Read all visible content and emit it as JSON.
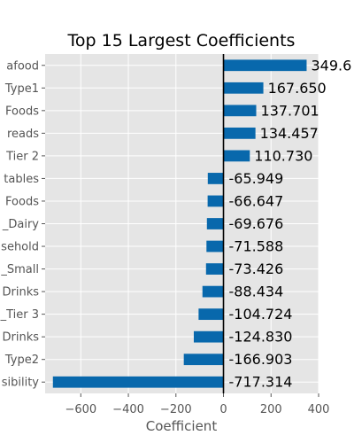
{
  "chart_data": {
    "type": "bar",
    "orientation": "horizontal",
    "title": "Top 15 Largest Coefficients",
    "xlabel": "Coefficient",
    "ylabel": "",
    "xlim": [
      -750,
      400
    ],
    "xticks": [
      -600,
      -400,
      -200,
      0,
      200,
      400
    ],
    "xtick_labels": [
      "−600",
      "−400",
      "−200",
      "0",
      "200",
      "400"
    ],
    "grid": true,
    "colors": {
      "bar": "#0868ac",
      "background": "#e5e5e5",
      "grid": "#ffffff",
      "zero_line": "#000000"
    },
    "categories": [
      "afood",
      "Type1",
      "Foods",
      "reads",
      "Tier 2",
      "tables",
      "Foods",
      "_Dairy",
      "sehold",
      "_Small",
      "Drinks",
      "_Tier 3",
      "Drinks",
      "Type2",
      "sibility"
    ],
    "values": [
      349.6,
      167.65,
      137.701,
      134.457,
      110.73,
      -65.949,
      -66.647,
      -69.676,
      -71.588,
      -73.426,
      -88.434,
      -104.724,
      -124.83,
      -166.903,
      -717.314
    ],
    "value_labels": [
      "349.6",
      "167.650",
      "137.701",
      "134.457",
      "110.730",
      "-65.949",
      "-66.647",
      "-69.676",
      "-71.588",
      "-73.426",
      "-88.434",
      "-104.724",
      "-124.830",
      "-166.903",
      "-717.314"
    ]
  }
}
